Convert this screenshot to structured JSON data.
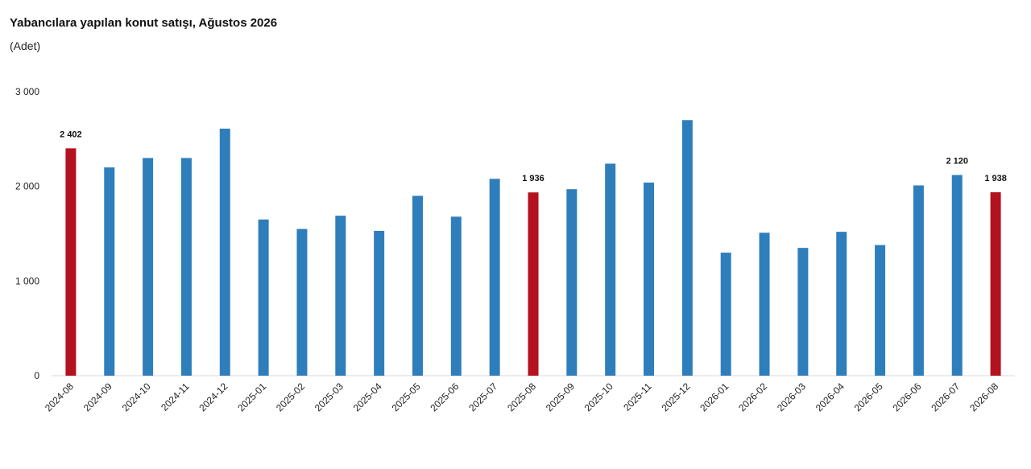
{
  "chart_data": {
    "type": "bar",
    "title": "Yabancılara yapılan konut satışı, Ağustos 2026",
    "subtitle": "(Adet)",
    "xlabel": "",
    "ylabel": "",
    "ylim": [
      0,
      3000
    ],
    "yticks": [
      0,
      1000,
      2000,
      3000
    ],
    "ytick_labels": [
      "0",
      "1 000",
      "2 000",
      "3 000"
    ],
    "grid": false,
    "categories": [
      "2024-08",
      "2024-09",
      "2024-10",
      "2024-11",
      "2024-12",
      "2025-01",
      "2025-02",
      "2025-03",
      "2025-04",
      "2025-05",
      "2025-06",
      "2025-07",
      "2025-08",
      "2025-09",
      "2025-10",
      "2025-11",
      "2025-12",
      "2026-01",
      "2026-02",
      "2026-03",
      "2026-04",
      "2026-05",
      "2026-06",
      "2026-07",
      "2026-08"
    ],
    "values": [
      2402,
      2200,
      2300,
      2300,
      2610,
      1650,
      1550,
      1690,
      1530,
      1900,
      1680,
      2080,
      1936,
      1970,
      2240,
      2040,
      2700,
      1300,
      1510,
      1350,
      1520,
      1380,
      2010,
      2120,
      1938
    ],
    "highlighted": [
      0,
      12,
      24
    ],
    "data_labels": [
      {
        "index": 0,
        "text": "2 402"
      },
      {
        "index": 12,
        "text": "1 936"
      },
      {
        "index": 23,
        "text": "2 120"
      },
      {
        "index": 24,
        "text": "1 938"
      }
    ],
    "colors": {
      "bar": "#2f7ebc",
      "highlight": "#b3121e"
    }
  }
}
